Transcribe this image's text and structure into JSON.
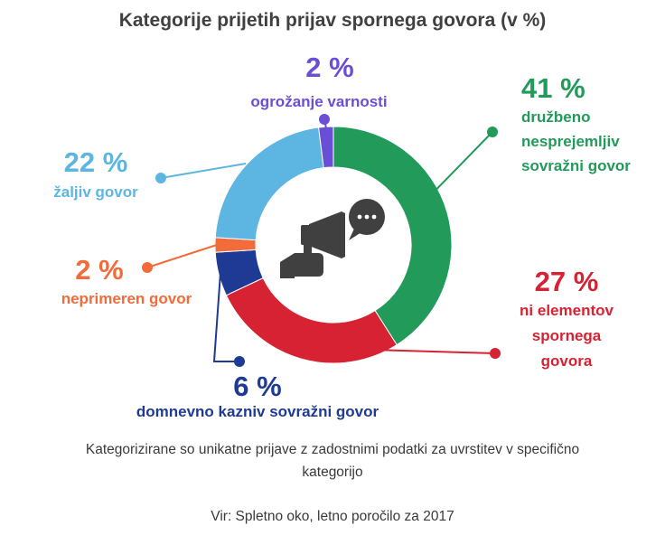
{
  "chart_data": {
    "type": "pie",
    "title": "Kategorije prijetih prijav spornega govora (v %)",
    "slices": [
      {
        "name_lines": [
          "družbeno",
          "nesprejemljiv",
          "sovražni govor"
        ],
        "value": 41,
        "label": "41 %",
        "color": "#229a5a"
      },
      {
        "name_lines": [
          "ni elementov",
          "spornega",
          "govora"
        ],
        "value": 27,
        "label": "27 %",
        "color": "#d62232"
      },
      {
        "name_lines": [
          "domnevno kazniv sovražni govor"
        ],
        "value": 6,
        "label": "6 %",
        "color": "#1f3a94"
      },
      {
        "name_lines": [
          "neprimeren govor"
        ],
        "value": 2,
        "label": "2 %",
        "color": "#f26b3a"
      },
      {
        "name_lines": [
          "žaljiv govor"
        ],
        "value": 22,
        "label": "22 %",
        "color": "#5db6e2"
      },
      {
        "name_lines": [
          "ogrožanje varnosti"
        ],
        "value": 2,
        "label": "2 %",
        "color": "#6a4fd6"
      }
    ]
  },
  "notes": {
    "line1": "Kategorizirane so unikatne prijave z zadostnimi podatki za uvrstitev v specifično",
    "line2": "kategorijo",
    "source": "Vir: Spletno oko, letno poročilo za 2017"
  },
  "icon": "megaphone-speech-bubble-icon"
}
